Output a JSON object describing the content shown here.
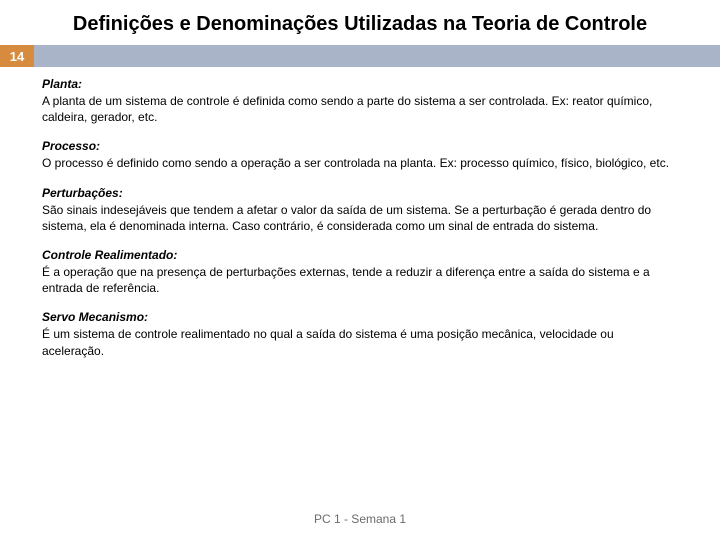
{
  "title": "Definições e Denominações Utilizadas na Teoria de Controle",
  "page_number": "14",
  "colors": {
    "page_num_bg": "#d78b3e",
    "bar_bg": "#a9b4c8",
    "title_color": "#000000",
    "body_color": "#000000",
    "footer_color": "#6b6b6b"
  },
  "definitions": [
    {
      "term": "Planta:",
      "body": "A planta de um sistema de controle é definida como sendo a parte do sistema a ser controlada. Ex: reator químico, caldeira, gerador, etc."
    },
    {
      "term": "Processo:",
      "body": "O processo é definido como sendo a operação a ser controlada na planta. Ex: processo químico, físico, biológico, etc."
    },
    {
      "term": "Perturbações:",
      "body": "São sinais indesejáveis que tendem a afetar o valor da saída de um sistema. Se a perturbação é gerada dentro do sistema, ela é denominada interna. Caso contrário, é considerada como um sinal de entrada do sistema."
    },
    {
      "term": "Controle Realimentado:",
      "body": "É a operação que na presença de perturbações externas, tende a reduzir a diferença entre a saída do sistema e a entrada de referência."
    },
    {
      "term": "Servo Mecanismo:",
      "body": "É um sistema de controle realimentado no qual a saída do sistema é uma posição mecânica, velocidade ou aceleração."
    }
  ],
  "footer": "PC 1 - Semana 1"
}
